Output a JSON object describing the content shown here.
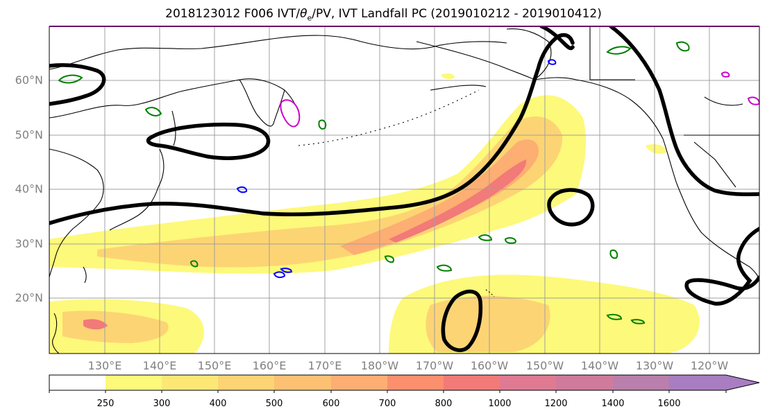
{
  "title": {
    "prefix": "2018123012 F006 IVT/",
    "theta": "θ",
    "theta_sub": "e",
    "suffix": "/PV, IVT Landfall PC (2019010212 - 2019010412)"
  },
  "lat_labels": [
    "60°N",
    "50°N",
    "40°N",
    "30°N",
    "20°N"
  ],
  "lon_labels": [
    "130°E",
    "140°E",
    "150°E",
    "160°E",
    "170°E",
    "180°W",
    "170°W",
    "160°W",
    "150°W",
    "140°W",
    "130°W",
    "120°W"
  ],
  "colors": {
    "ocean": "#ffffff",
    "coast": "#000000",
    "grid": "#a0a0a0",
    "theta_e": "#000000",
    "pv_pos": "#008000",
    "pv_neg": "#0000ff",
    "pv_mag": "#cc00cc",
    "ivt_levels": [
      "#ffffff",
      "#fdf97a",
      "#fde876",
      "#fdd474",
      "#fdc173",
      "#fdae72",
      "#fb8f6e",
      "#f27a78",
      "#e07a93",
      "#b97fad",
      "#a97dc2"
    ]
  },
  "colorbar": {
    "ticks": [
      "250",
      "300",
      "400",
      "500",
      "600",
      "700",
      "800",
      "1000",
      "1200",
      "1400",
      "1600"
    ]
  }
}
